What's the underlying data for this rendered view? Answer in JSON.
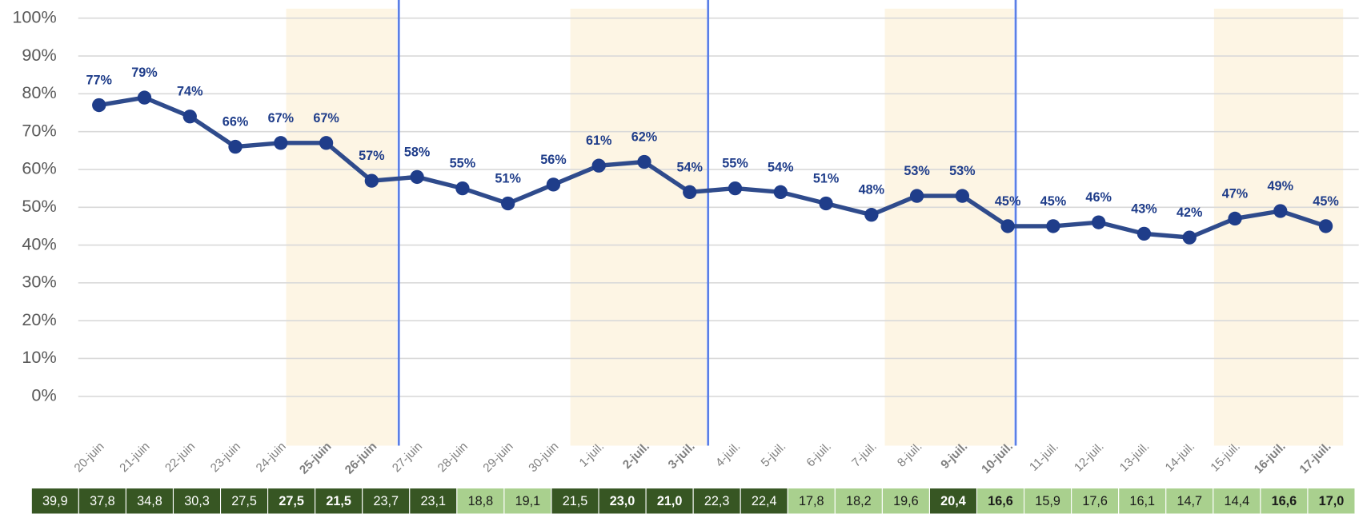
{
  "chart_data": {
    "type": "line",
    "categories": [
      "20-juin",
      "21-juin",
      "22-juin",
      "23-juin",
      "24-juin",
      "25-juin",
      "26-juin",
      "27-juin",
      "28-juin",
      "29-juin",
      "30-juin",
      "1-juil.",
      "2-juil.",
      "3-juil.",
      "4-juil.",
      "5-juil.",
      "6-juil.",
      "7-juil.",
      "8-juil.",
      "9-juil.",
      "10-juil.",
      "11-juil.",
      "12-juil.",
      "13-juil.",
      "14-juil.",
      "15-juil.",
      "16-juil.",
      "17-juil."
    ],
    "bold_categories": [
      5,
      6,
      12,
      13,
      19,
      20,
      26,
      27
    ],
    "series": [
      {
        "color": "#2f4b8c",
        "values": [
          77,
          79,
          74,
          66,
          67,
          67,
          57,
          58,
          55,
          51,
          56,
          61,
          62,
          54,
          55,
          54,
          51,
          48,
          53,
          53,
          45,
          45,
          46,
          43,
          42,
          47,
          49,
          45
        ],
        "value_labels": [
          "77%",
          "79%",
          "74%",
          "66%",
          "67%",
          "67%",
          "57%",
          "58%",
          "55%",
          "51%",
          "56%",
          "61%",
          "62%",
          "54%",
          "55%",
          "54%",
          "51%",
          "48%",
          "53%",
          "53%",
          "45%",
          "45%",
          "46%",
          "43%",
          "42%",
          "47%",
          "49%",
          "45%"
        ]
      }
    ],
    "ylim": [
      0,
      100
    ],
    "yticks": [
      {
        "value": 0,
        "label": "0%"
      },
      {
        "value": 10,
        "label": "10%"
      },
      {
        "value": 20,
        "label": "20%"
      },
      {
        "value": 30,
        "label": "30%"
      },
      {
        "value": 40,
        "label": "40%"
      },
      {
        "value": 50,
        "label": "50%"
      },
      {
        "value": 60,
        "label": "60%"
      },
      {
        "value": 70,
        "label": "70%"
      },
      {
        "value": 80,
        "label": "80%"
      },
      {
        "value": 90,
        "label": "90%"
      },
      {
        "value": 100,
        "label": "100%"
      }
    ],
    "grid": true,
    "table_row": [
      "39,9",
      "37,8",
      "34,8",
      "30,3",
      "27,5",
      "27,5",
      "21,5",
      "23,7",
      "23,1",
      "18,8",
      "19,1",
      "21,5",
      "23,0",
      "21,0",
      "22,3",
      "22,4",
      "17,8",
      "18,2",
      "19,6",
      "20,4",
      "16,6",
      "15,9",
      "17,6",
      "16,1",
      "14,7",
      "14,4",
      "16,6",
      "17,0"
    ],
    "table_colors": [
      "#375623",
      "#375623",
      "#375623",
      "#375623",
      "#375623",
      "#375623",
      "#375623",
      "#375623",
      "#375623",
      "#a9d08e",
      "#a9d08e",
      "#375623",
      "#375623",
      "#375623",
      "#375623",
      "#375623",
      "#a9d08e",
      "#a9d08e",
      "#a9d08e",
      "#375623",
      "#a9d08e",
      "#a9d08e",
      "#a9d08e",
      "#a9d08e",
      "#a9d08e",
      "#a9d08e",
      "#a9d08e",
      "#a9d08e"
    ]
  }
}
